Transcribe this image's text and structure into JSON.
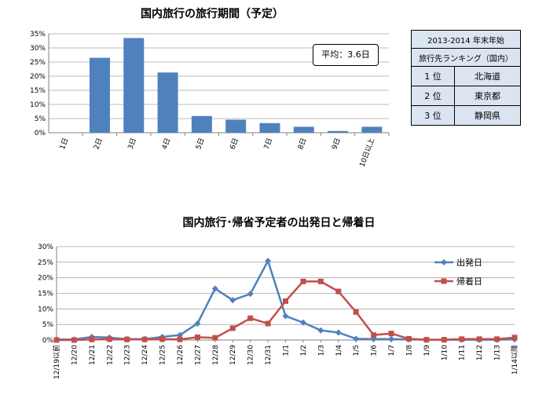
{
  "chart_data": [
    {
      "type": "bar",
      "title": "国内旅行の旅行期間（予定）",
      "categories": [
        "1日",
        "2日",
        "3日",
        "4日",
        "5日",
        "6日",
        "7日",
        "8日",
        "9日",
        "10日以上"
      ],
      "values": [
        0.0,
        26.5,
        33.5,
        21.3,
        5.9,
        4.6,
        3.4,
        2.1,
        0.6,
        2.1
      ],
      "ylim": [
        0,
        35
      ],
      "yticks": [
        "0%",
        "5%",
        "10%",
        "15%",
        "20%",
        "25%",
        "30%",
        "35%"
      ],
      "grid": true,
      "color": "#4f81bd"
    },
    {
      "type": "line",
      "title": "国内旅行･帰省予定者の出発日と帰着日",
      "categories": [
        "12/19以前",
        "12/20",
        "12/21",
        "12/22",
        "12/23",
        "12/24",
        "12/25",
        "12/26",
        "12/27",
        "12/28",
        "12/29",
        "12/30",
        "12/31",
        "1/1",
        "1/2",
        "1/3",
        "1/4",
        "1/5",
        "1/6",
        "1/7",
        "1/8",
        "1/9",
        "1/10",
        "1/11",
        "1/12",
        "1/13",
        "1/14以降"
      ],
      "series": [
        {
          "name": "出発日",
          "color": "#4f81bd",
          "marker": "diamond",
          "values": [
            0.2,
            0.2,
            1.0,
            0.8,
            0.3,
            0.3,
            1.0,
            1.6,
            5.3,
            16.5,
            12.8,
            14.8,
            25.4,
            7.7,
            5.6,
            3.1,
            2.4,
            0.4,
            0.3,
            0.3,
            0.2,
            0.1,
            0.1,
            0.1,
            0.1,
            0.1,
            0.2
          ]
        },
        {
          "name": "帰着日",
          "color": "#c0504d",
          "marker": "square",
          "values": [
            0.0,
            0.0,
            0.2,
            0.3,
            0.2,
            0.2,
            0.3,
            0.2,
            0.9,
            0.7,
            3.8,
            7.0,
            5.3,
            12.5,
            18.8,
            18.8,
            15.6,
            9.0,
            1.6,
            2.1,
            0.4,
            0.1,
            0.1,
            0.3,
            0.3,
            0.3,
            0.8
          ]
        }
      ],
      "ylim": [
        0,
        30
      ],
      "yticks": [
        "0%",
        "5%",
        "10%",
        "15%",
        "20%",
        "25%",
        "30%"
      ],
      "legend": "right",
      "grid": true
    }
  ],
  "average_label": "平均：3.6日",
  "ranking": {
    "header": [
      "2013-2014 年末年始",
      "旅行先ランキング（国内）"
    ],
    "rows": [
      {
        "rank": "1 位",
        "place": "北海道"
      },
      {
        "rank": "2 位",
        "place": "東京都"
      },
      {
        "rank": "3 位",
        "place": "静岡県"
      }
    ]
  }
}
